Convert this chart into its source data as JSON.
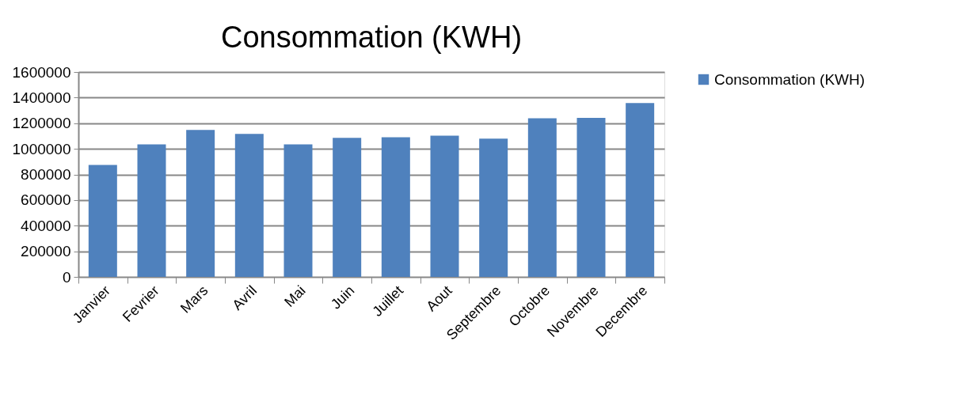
{
  "chart_data": {
    "type": "bar",
    "title": "Consommation (KWH)",
    "categories": [
      "Janvier",
      "Fevrier",
      "Mars",
      "Avril",
      "Mai",
      "Juin",
      "Juillet",
      "Aout",
      "Septembre",
      "Octobre",
      "Novembre",
      "Decembre"
    ],
    "series": [
      {
        "name": "Consommation (KWH)",
        "color": "#4f81bd",
        "values": [
          874000,
          1034000,
          1148000,
          1117000,
          1034000,
          1086000,
          1090000,
          1102000,
          1080000,
          1238000,
          1242000,
          1357000
        ]
      }
    ],
    "ylim": [
      0,
      1600000
    ],
    "yticks": [
      0,
      200000,
      400000,
      600000,
      800000,
      1000000,
      1200000,
      1400000,
      1600000
    ],
    "grid": "y",
    "legend": "right"
  }
}
